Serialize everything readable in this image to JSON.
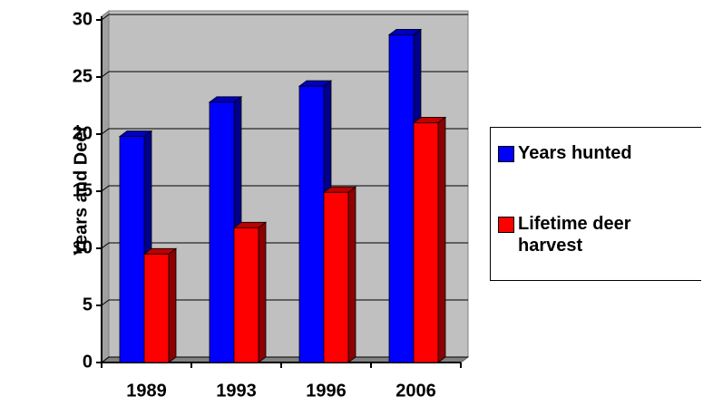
{
  "chart_data": {
    "type": "bar3d",
    "y_label": "Years and Deer",
    "categories": [
      "1989",
      "1993",
      "1996",
      "2006"
    ],
    "series": [
      {
        "name": "Years hunted",
        "color": "#0000ff",
        "values": [
          19.8,
          22.8,
          24.2,
          28.7
        ]
      },
      {
        "name": "Lifetime deer harvest",
        "color": "#ff0000",
        "values": [
          9.5,
          11.8,
          14.9,
          21.0
        ]
      }
    ],
    "ylim": [
      0,
      30
    ],
    "yticks": [
      0,
      5,
      10,
      15,
      20,
      25,
      30
    ],
    "grid": true,
    "legend": "right"
  }
}
